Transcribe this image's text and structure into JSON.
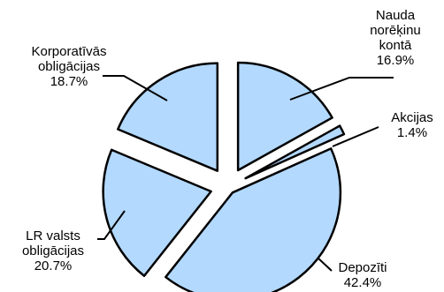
{
  "chart_data": {
    "type": "pie",
    "exploded": true,
    "start_angle_deg": 0,
    "direction": "clockwise",
    "slices": [
      {
        "label_lines": [
          "Nauda",
          "norēķinu",
          "kontā"
        ],
        "value": 16.9,
        "value_text": "16.9%"
      },
      {
        "label_lines": [
          "Akcijas"
        ],
        "value": 1.4,
        "value_text": "1.4%"
      },
      {
        "label_lines": [
          "Depozīti"
        ],
        "value": 42.4,
        "value_text": "42.4%"
      },
      {
        "label_lines": [
          "LR valsts",
          "obligācijas"
        ],
        "value": 20.7,
        "value_text": "20.7%"
      },
      {
        "label_lines": [
          "Korporatīvās",
          "obligācijas"
        ],
        "value": 18.7,
        "value_text": "18.7%"
      }
    ],
    "colors": {
      "fill": "#b3d9ff",
      "stroke": "#000000",
      "leader": "#000000"
    }
  }
}
